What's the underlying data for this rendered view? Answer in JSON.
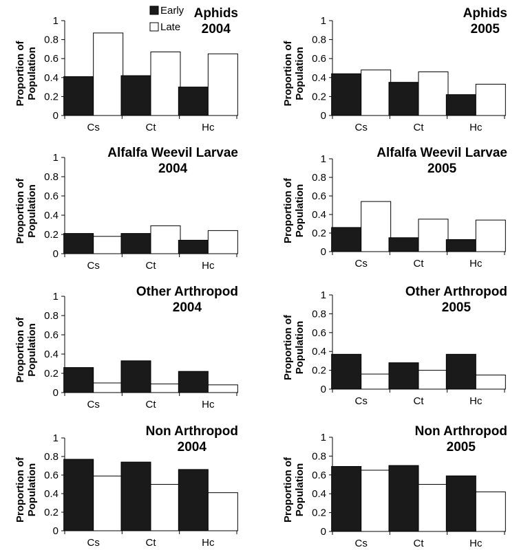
{
  "legend": {
    "early": "Early",
    "late": "Late"
  },
  "colors": {
    "early": "#1a1a1a",
    "late": "#ffffff",
    "axis": "#000000"
  },
  "chart_data": [
    {
      "type": "bar",
      "title": [
        "Aphids",
        "2004"
      ],
      "ylabel": [
        "Proportion of",
        "Population"
      ],
      "categories": [
        "Cs",
        "Ct",
        "Hc"
      ],
      "ylim": [
        0,
        1
      ],
      "yticks": [
        "0",
        "0.2",
        "0.4",
        "0.6",
        "0.8",
        "1"
      ],
      "series": [
        {
          "name": "Early",
          "values": [
            0.41,
            0.42,
            0.3
          ]
        },
        {
          "name": "Late",
          "values": [
            0.87,
            0.67,
            0.65
          ]
        }
      ]
    },
    {
      "type": "bar",
      "title": [
        "Aphids",
        "2005"
      ],
      "ylabel": [
        "Proportion of",
        "Population"
      ],
      "categories": [
        "Cs",
        "Ct",
        "Hc"
      ],
      "ylim": [
        0,
        1
      ],
      "yticks": [
        "0",
        "0.2",
        "0.4",
        "0.6",
        "0.8",
        "1"
      ],
      "series": [
        {
          "name": "Early",
          "values": [
            0.44,
            0.35,
            0.22
          ]
        },
        {
          "name": "Late",
          "values": [
            0.48,
            0.46,
            0.33
          ]
        }
      ]
    },
    {
      "type": "bar",
      "title": [
        "Alfalfa Weevil Larvae",
        "2004"
      ],
      "ylabel": [
        "Proportion of",
        "Population"
      ],
      "categories": [
        "Cs",
        "Ct",
        "Hc"
      ],
      "ylim": [
        0,
        1
      ],
      "yticks": [
        "0",
        "0.2",
        "0.4",
        "0.6",
        "0.8",
        "1"
      ],
      "series": [
        {
          "name": "Early",
          "values": [
            0.21,
            0.21,
            0.14
          ]
        },
        {
          "name": "Late",
          "values": [
            0.18,
            0.29,
            0.24
          ]
        }
      ]
    },
    {
      "type": "bar",
      "title": [
        "Alfalfa Weevil Larvae",
        "2005"
      ],
      "ylabel": [
        "Proportion of",
        "Population"
      ],
      "categories": [
        "Cs",
        "Ct",
        "Hc"
      ],
      "ylim": [
        0,
        1
      ],
      "yticks": [
        "0",
        "0.2",
        "0.4",
        "0.6",
        "0.8",
        "1"
      ],
      "series": [
        {
          "name": "Early",
          "values": [
            0.26,
            0.15,
            0.13
          ]
        },
        {
          "name": "Late",
          "values": [
            0.54,
            0.35,
            0.34
          ]
        }
      ]
    },
    {
      "type": "bar",
      "title": [
        "Other Arthropod",
        "2004"
      ],
      "ylabel": [
        "Proportion of",
        "Population"
      ],
      "categories": [
        "Cs",
        "Ct",
        "Hc"
      ],
      "ylim": [
        0,
        1
      ],
      "yticks": [
        "0",
        "0.2",
        "0.4",
        "0.6",
        "0.8",
        "1"
      ],
      "series": [
        {
          "name": "Early",
          "values": [
            0.26,
            0.33,
            0.22
          ]
        },
        {
          "name": "Late",
          "values": [
            0.1,
            0.09,
            0.08
          ]
        }
      ]
    },
    {
      "type": "bar",
      "title": [
        "Other Arthropod",
        "2005"
      ],
      "ylabel": [
        "Proportion of",
        "Population"
      ],
      "categories": [
        "Cs",
        "Ct",
        "Hc"
      ],
      "ylim": [
        0,
        1
      ],
      "yticks": [
        "0",
        "0.2",
        "0.4",
        "0.6",
        "0.8",
        "1"
      ],
      "series": [
        {
          "name": "Early",
          "values": [
            0.37,
            0.28,
            0.37
          ]
        },
        {
          "name": "Late",
          "values": [
            0.16,
            0.2,
            0.15
          ]
        }
      ]
    },
    {
      "type": "bar",
      "title": [
        "Non Arthropod",
        "2004"
      ],
      "ylabel": [
        "Proportion of",
        "Population"
      ],
      "categories": [
        "Cs",
        "Ct",
        "Hc"
      ],
      "ylim": [
        0,
        1
      ],
      "yticks": [
        "0",
        "0.2",
        "0.4",
        "0.6",
        "0.8",
        "1"
      ],
      "series": [
        {
          "name": "Early",
          "values": [
            0.77,
            0.74,
            0.66
          ]
        },
        {
          "name": "Late",
          "values": [
            0.59,
            0.5,
            0.41
          ]
        }
      ]
    },
    {
      "type": "bar",
      "title": [
        "Non Arthropod",
        "2005"
      ],
      "ylabel": [
        "Proportion of",
        "Population"
      ],
      "categories": [
        "Cs",
        "Ct",
        "Hc"
      ],
      "ylim": [
        0,
        1
      ],
      "yticks": [
        "0",
        "0.2",
        "0.4",
        "0.6",
        "0.8",
        "1"
      ],
      "series": [
        {
          "name": "Early",
          "values": [
            0.69,
            0.7,
            0.59
          ]
        },
        {
          "name": "Late",
          "values": [
            0.65,
            0.5,
            0.42
          ]
        }
      ]
    }
  ]
}
